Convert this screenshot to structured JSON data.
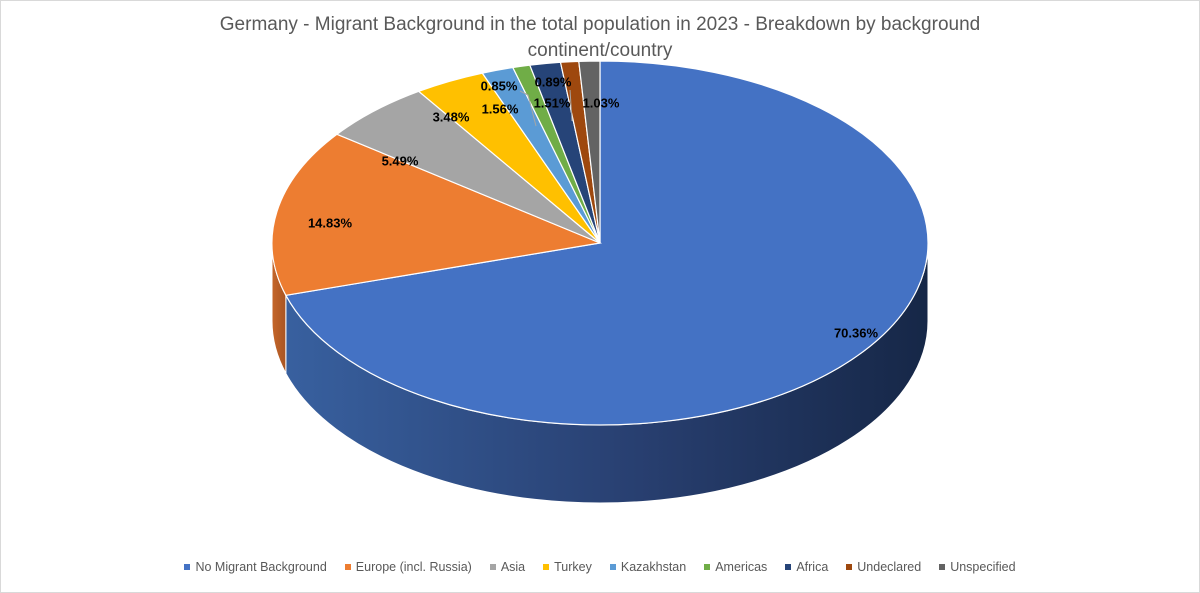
{
  "chart_data": {
    "type": "pie",
    "title": "Germany - Migrant Background in the total population in 2023 - Breakdown by background",
    "title_line2": "continent/country",
    "categories": [
      "No Migrant Background",
      "Europe (incl. Russia)",
      "Asia",
      "Turkey",
      "Kazakhstan",
      "Americas",
      "Africa",
      "Undeclared",
      "Unspecified"
    ],
    "values": [
      70.36,
      14.83,
      5.49,
      3.48,
      1.56,
      0.85,
      1.51,
      0.89,
      1.03
    ],
    "labels": [
      "70.36%",
      "14.83%",
      "5.49%",
      "3.48%",
      "1.56%",
      "0.85%",
      "1.51%",
      "0.89%",
      "1.03%"
    ],
    "colors": [
      "#4472C4",
      "#ED7D31",
      "#A5A5A5",
      "#FFC000",
      "#5B9BD5",
      "#70AD47",
      "#264478",
      "#9E480E",
      "#636363"
    ],
    "legend_position": "bottom",
    "style": "3d-pie"
  }
}
